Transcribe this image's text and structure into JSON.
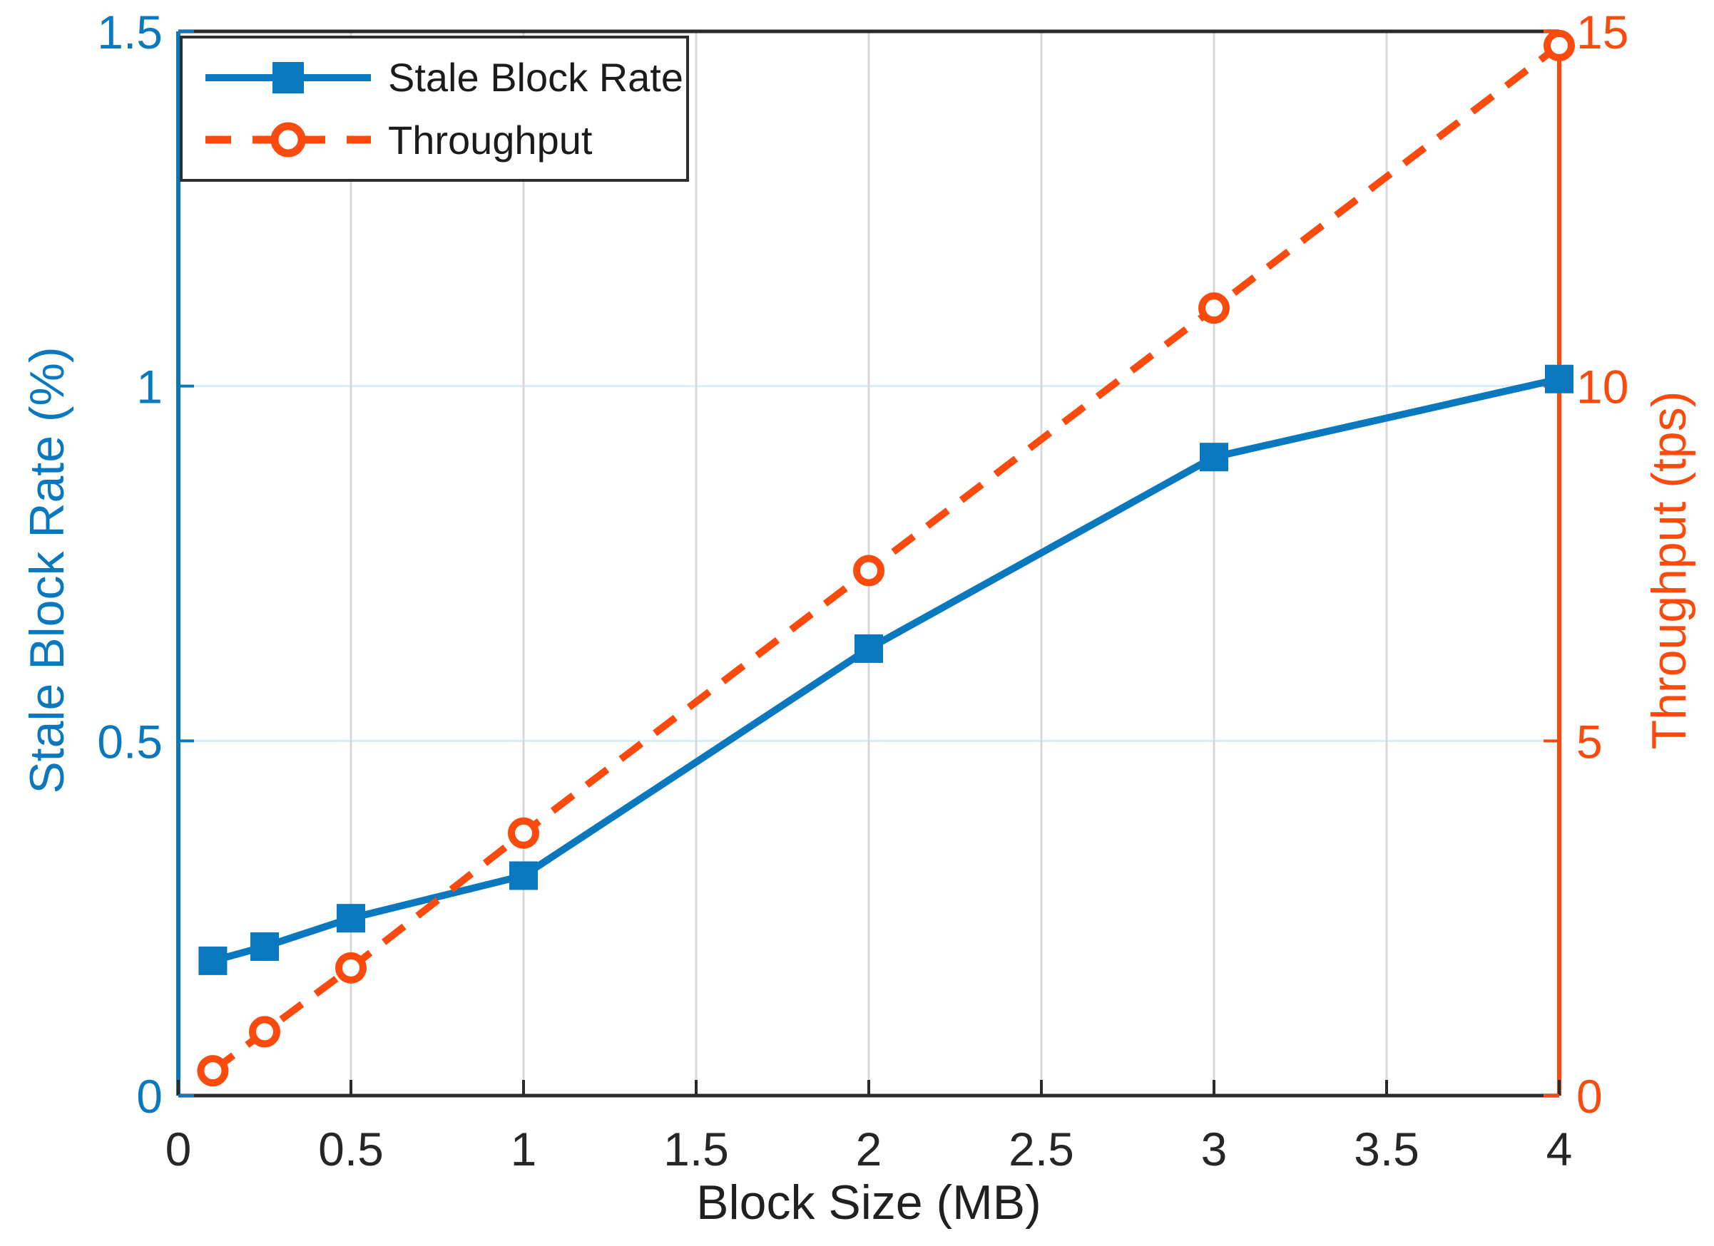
{
  "figure": {
    "background": "#ffffff"
  },
  "colors": {
    "stale_blue": "#0A78BE",
    "throughput_orange": "#FB4A0D",
    "grid_vertical": "#D8D8D8",
    "grid_horizontal": "#D9EDF7",
    "axis_black": "#2b2b2b",
    "tick_text_black": "#262626",
    "legend_border": "#2e2e2e",
    "legend_text": "#1b1b1b"
  },
  "legend": {
    "items": [
      {
        "label": "Stale Block Rate"
      },
      {
        "label": "Throughput"
      }
    ]
  },
  "chart_data": {
    "type": "line",
    "title": "",
    "xlabel": "Block Size (MB)",
    "xlim": [
      0,
      4
    ],
    "x_ticks": [
      0,
      0.5,
      1,
      1.5,
      2,
      2.5,
      3,
      3.5,
      4
    ],
    "x_tick_labels": [
      "0",
      "0.5",
      "1",
      "1.5",
      "2",
      "2.5",
      "3",
      "3.5",
      "4"
    ],
    "x": [
      0.1,
      0.25,
      0.5,
      1,
      2,
      3,
      4
    ],
    "series": [
      {
        "name": "Stale Block Rate",
        "axis": "left",
        "color": "#0A78BE",
        "line_style": "solid",
        "marker": "square",
        "values": [
          0.19,
          0.21,
          0.25,
          0.31,
          0.63,
          0.9,
          1.01
        ]
      },
      {
        "name": "Throughput",
        "axis": "right",
        "color": "#FB4A0D",
        "line_style": "dashed",
        "marker": "circle",
        "values": [
          0.35,
          0.9,
          1.8,
          3.7,
          7.4,
          11.1,
          14.8
        ]
      }
    ],
    "left_axis": {
      "label": "Stale Block Rate (%)",
      "lim": [
        0,
        1.5
      ],
      "ticks": [
        0,
        0.5,
        1,
        1.5
      ],
      "tick_labels": [
        "0",
        "0.5",
        "1",
        "1.5"
      ]
    },
    "right_axis": {
      "label": "Throughput (tps)",
      "lim": [
        0,
        15
      ],
      "ticks": [
        0,
        5,
        10,
        15
      ],
      "tick_labels": [
        "0",
        "5",
        "10",
        "15"
      ]
    },
    "grid": true,
    "legend_position": "top-left"
  }
}
